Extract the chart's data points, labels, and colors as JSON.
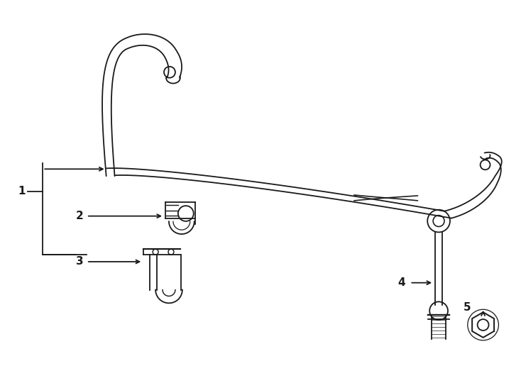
{
  "bg_color": "#ffffff",
  "line_color": "#1a1a1a",
  "lw": 1.3,
  "fig_width": 7.34,
  "fig_height": 5.4,
  "label_fontsize": 11,
  "label_fontweight": "bold"
}
